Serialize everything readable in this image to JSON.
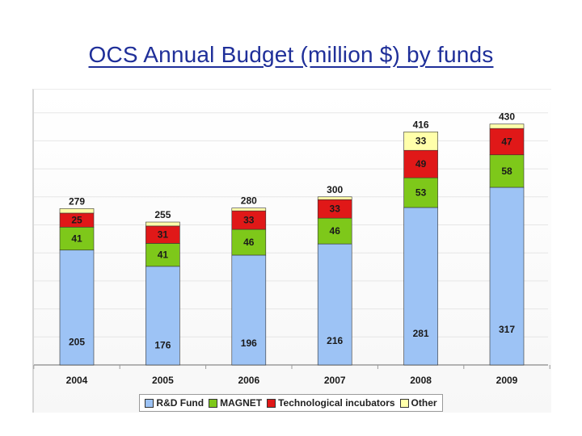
{
  "title": "OCS Annual Budget (million $) by funds",
  "chart_data": {
    "type": "bar",
    "stacked": true,
    "title": "OCS Annual Budget (million $) by funds",
    "xlabel": "",
    "ylabel": "",
    "ylim": [
      0,
      450
    ],
    "grid": true,
    "legend_position": "bottom",
    "categories": [
      "2004",
      "2005",
      "2006",
      "2007",
      "2008",
      "2009"
    ],
    "series": [
      {
        "name": "R&D Fund",
        "color": "#9dc3f5",
        "values": [
          205,
          176,
          196,
          216,
          281,
          317
        ]
      },
      {
        "name": "MAGNET",
        "color": "#7ec81a",
        "values": [
          41,
          41,
          46,
          46,
          53,
          58
        ]
      },
      {
        "name": "Technological incubators",
        "color": "#e01818",
        "values": [
          25,
          31,
          33,
          33,
          49,
          47
        ]
      },
      {
        "name": "Other",
        "color": "#ffffaa",
        "values": [
          8,
          7,
          5,
          5,
          33,
          8
        ]
      }
    ],
    "totals": [
      279,
      255,
      280,
      300,
      416,
      430
    ],
    "segment_labels": [
      [
        "205",
        "41",
        "25",
        ""
      ],
      [
        "176",
        "41",
        "31",
        ""
      ],
      [
        "196",
        "46",
        "33",
        ""
      ],
      [
        "216",
        "46",
        "33",
        ""
      ],
      [
        "281",
        "53",
        "49",
        "33"
      ],
      [
        "317",
        "58",
        "47",
        ""
      ]
    ]
  }
}
